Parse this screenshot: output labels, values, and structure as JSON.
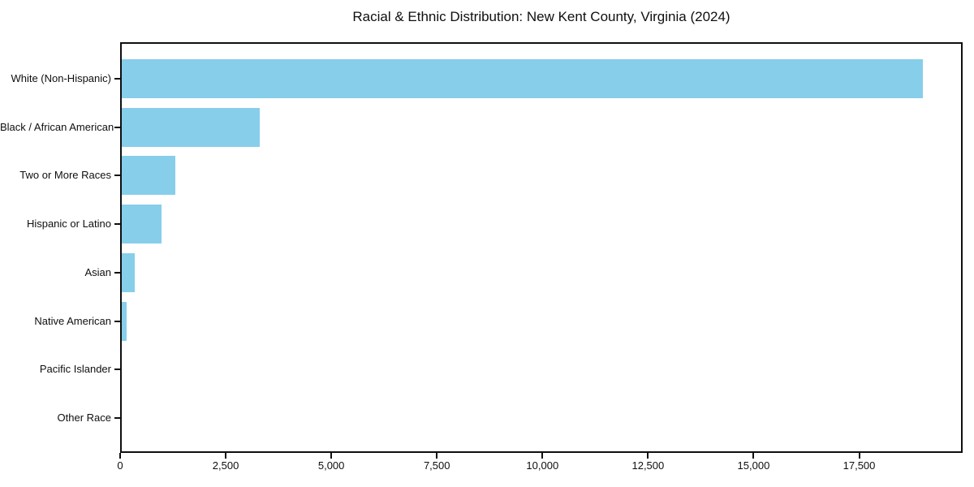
{
  "title": "Racial & Ethnic Distribution: New Kent County, Virginia (2024)",
  "chart_data": {
    "type": "bar",
    "orientation": "horizontal",
    "title": "Racial & Ethnic Distribution: New Kent County, Virginia (2024)",
    "xlabel": "",
    "ylabel": "",
    "categories": [
      "White (Non-Hispanic)",
      "Black / African American",
      "Two or More Races",
      "Hispanic or Latino",
      "Asian",
      "Native American",
      "Pacific Islander",
      "Other Race"
    ],
    "values": [
      19000,
      3300,
      1300,
      975,
      350,
      160,
      20,
      10
    ],
    "xlim": [
      0,
      19950
    ],
    "x_ticks": [
      0,
      2500,
      5000,
      7500,
      10000,
      12500,
      15000,
      17500
    ],
    "x_tick_labels": [
      "0",
      "2,500",
      "5,000",
      "7,500",
      "10,000",
      "12,500",
      "15,000",
      "17,500"
    ],
    "bar_color": "#87CEEB",
    "grid": false,
    "legend": null
  }
}
